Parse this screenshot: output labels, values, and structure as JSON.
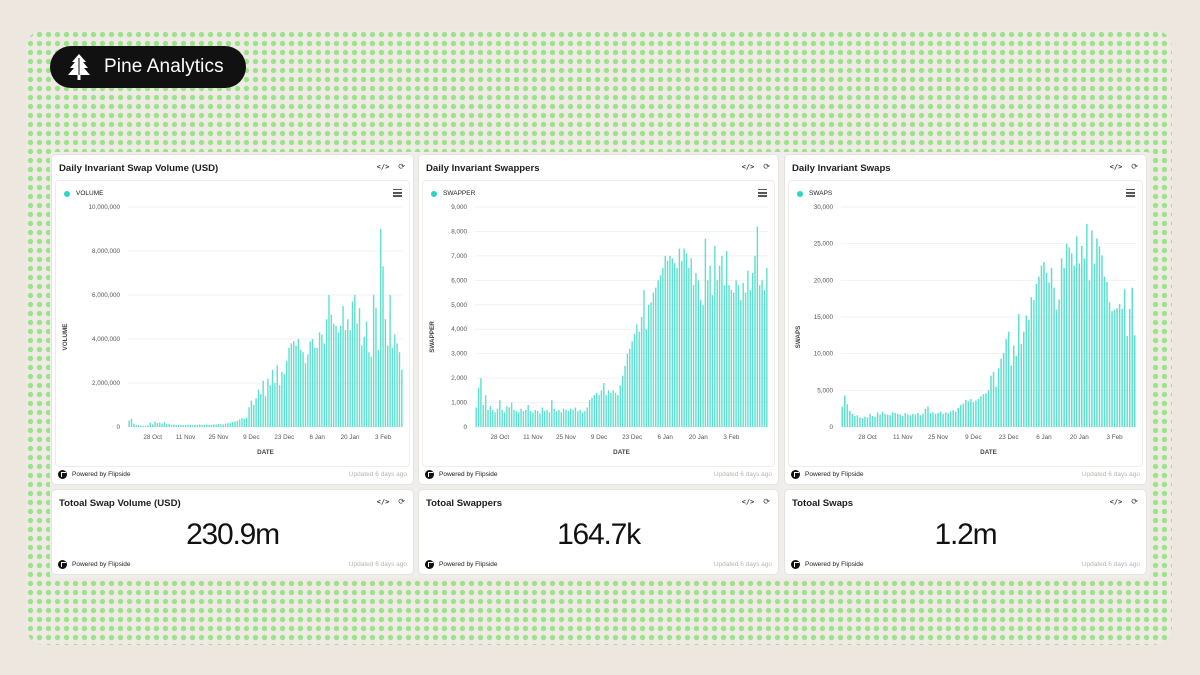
{
  "brand": {
    "name": "Pine Analytics",
    "logo_icon": "pine-tree-icon"
  },
  "colors": {
    "bar": "#5fe0cf",
    "legend": "#2ad7c0",
    "accent_dots": "#9be38b"
  },
  "footer": {
    "powered": "Powered by Flipside",
    "updated": "Updated 6 days ago"
  },
  "panels": [
    {
      "title": "Daily Invariant Swap Volume (USD)",
      "legend": "VOLUME"
    },
    {
      "title": "Daily Invariant Swappers",
      "legend": "SWAPPER"
    },
    {
      "title": "Daily Invariant Swaps",
      "legend": "SWAPS"
    }
  ],
  "kpis": [
    {
      "title": "Totoal Swap Volume (USD)",
      "value": "230.9m"
    },
    {
      "title": "Totoal Swappers",
      "value": "164.7k"
    },
    {
      "title": "Totoal Swaps",
      "value": "1.2m"
    }
  ],
  "chart_data": [
    {
      "type": "bar",
      "title": "Daily Invariant Swap Volume (USD)",
      "series": [
        {
          "name": "VOLUME",
          "values": [
            300000,
            380000,
            150000,
            100000,
            80000,
            60000,
            50000,
            60000,
            70000,
            200000,
            120000,
            250000,
            180000,
            200000,
            150000,
            230000,
            130000,
            150000,
            100000,
            110000,
            90000,
            100000,
            80000,
            80000,
            90000,
            100000,
            110000,
            80000,
            90000,
            100000,
            120000,
            90000,
            100000,
            110000,
            90000,
            100000,
            120000,
            110000,
            140000,
            130000,
            120000,
            150000,
            170000,
            180000,
            220000,
            250000,
            280000,
            350000,
            400000,
            380000,
            420000,
            900000,
            1200000,
            1000000,
            1300000,
            1700000,
            1500000,
            2100000,
            1400000,
            2200000,
            1900000,
            2600000,
            2000000,
            2800000,
            1900000,
            2500000,
            2400000,
            3000000,
            3600000,
            3800000,
            3900000,
            3700000,
            4000000,
            3500000,
            3400000,
            2900000,
            3300000,
            3900000,
            4000000,
            3600000,
            3600000,
            4300000,
            4200000,
            3800000,
            4900000,
            6000000,
            5100000,
            4700000,
            4600000,
            4300000,
            4600000,
            5500000,
            4400000,
            4900000,
            4400000,
            5700000,
            6000000,
            4700000,
            5400000,
            3700000,
            4100000,
            4800000,
            3400000,
            3200000,
            6000000,
            5400000,
            3500000,
            9000000,
            7300000,
            4900000,
            3700000,
            6000000,
            3600000,
            4200000,
            3800000,
            3400000,
            2600000
          ]
        }
      ],
      "x_ticks": [
        "28 Oct",
        "11 Nov",
        "25 Nov",
        "9 Dec",
        "23 Dec",
        "6 Jan",
        "20 Jan",
        "3 Feb"
      ],
      "y_ticks": [
        "0",
        "2,000,000",
        "4,000,000",
        "6,000,000",
        "8,000,000",
        "10,000,000"
      ],
      "ylim": [
        0,
        10000000
      ],
      "xlabel": "DATE",
      "ylabel": "VOLUME",
      "grid": true
    },
    {
      "type": "bar",
      "title": "Daily Invariant Swappers",
      "series": [
        {
          "name": "SWAPPER",
          "values": [
            800,
            1600,
            2000,
            900,
            1300,
            700,
            850,
            700,
            600,
            750,
            1100,
            700,
            600,
            850,
            800,
            1000,
            700,
            650,
            600,
            750,
            650,
            700,
            900,
            650,
            600,
            700,
            650,
            550,
            800,
            650,
            700,
            600,
            1100,
            750,
            650,
            700,
            600,
            750,
            700,
            650,
            750,
            700,
            800,
            650,
            700,
            600,
            650,
            800,
            1100,
            1200,
            1300,
            1400,
            1300,
            1500,
            1800,
            1300,
            1500,
            1400,
            1500,
            1400,
            1300,
            1700,
            2100,
            2500,
            3000,
            3200,
            3500,
            3800,
            4200,
            3900,
            4500,
            5600,
            4000,
            5000,
            5100,
            5500,
            5700,
            6000,
            6200,
            6500,
            7000,
            6800,
            7000,
            6900,
            6700,
            6500,
            7300,
            6800,
            7300,
            7100,
            6500,
            6900,
            5800,
            6300,
            6000,
            5200,
            5000,
            7700,
            6000,
            6600,
            5400,
            7400,
            6000,
            6600,
            7000,
            5800,
            7200,
            5800,
            5600,
            5500,
            6000,
            5800,
            5200,
            5900,
            5500,
            6400,
            5600,
            6300,
            7000,
            8200,
            5800,
            6000,
            5600,
            6500
          ]
        }
      ],
      "x_ticks": [
        "28 Oct",
        "11 Nov",
        "25 Nov",
        "9 Dec",
        "23 Dec",
        "6 Jan",
        "20 Jan",
        "3 Feb"
      ],
      "y_ticks": [
        "0",
        "1,000",
        "2,000",
        "3,000",
        "4,000",
        "5,000",
        "6,000",
        "7,000",
        "8,000",
        "9,000"
      ],
      "ylim": [
        0,
        9000
      ],
      "xlabel": "DATE",
      "ylabel": "SWAPPER",
      "grid": true
    },
    {
      "type": "bar",
      "title": "Daily Invariant Swaps",
      "series": [
        {
          "name": "SWAPS",
          "values": [
            2800,
            4300,
            3100,
            2200,
            1800,
            1500,
            1600,
            1300,
            1200,
            1400,
            1300,
            1800,
            1500,
            1400,
            2000,
            1700,
            2100,
            1800,
            1700,
            1600,
            2000,
            1900,
            1800,
            1700,
            1500,
            1900,
            1700,
            1600,
            1800,
            1700,
            1900,
            1600,
            1800,
            2500,
            2800,
            1900,
            2000,
            1800,
            1900,
            2100,
            1800,
            2000,
            1900,
            2100,
            2300,
            2100,
            2600,
            3000,
            3200,
            3700,
            3500,
            3800,
            3400,
            3600,
            3800,
            4200,
            4500,
            4600,
            5000,
            7000,
            7500,
            5500,
            8000,
            9300,
            10100,
            12000,
            13000,
            8400,
            11100,
            9700,
            15400,
            11300,
            13000,
            15200,
            14600,
            17700,
            17300,
            19500,
            20500,
            22000,
            22500,
            21000,
            19700,
            21700,
            19000,
            16000,
            17400,
            23000,
            21700,
            25000,
            24500,
            23700,
            22000,
            26000,
            22300,
            24700,
            23000,
            27700,
            20000,
            26800,
            22300,
            25700,
            24600,
            23400,
            20500,
            19800,
            17000,
            15800,
            16000,
            16200,
            16800,
            16100,
            18800,
            12400,
            16100,
            19000,
            12500
          ]
        }
      ],
      "x_ticks": [
        "28 Oct",
        "11 Nov",
        "25 Nov",
        "9 Dec",
        "23 Dec",
        "6 Jan",
        "20 Jan",
        "3 Feb"
      ],
      "y_ticks": [
        "0",
        "5,000",
        "10,000",
        "15,000",
        "20,000",
        "25,000",
        "30,000"
      ],
      "ylim": [
        0,
        30000
      ],
      "xlabel": "DATE",
      "ylabel": "SWAPS",
      "grid": true
    }
  ]
}
